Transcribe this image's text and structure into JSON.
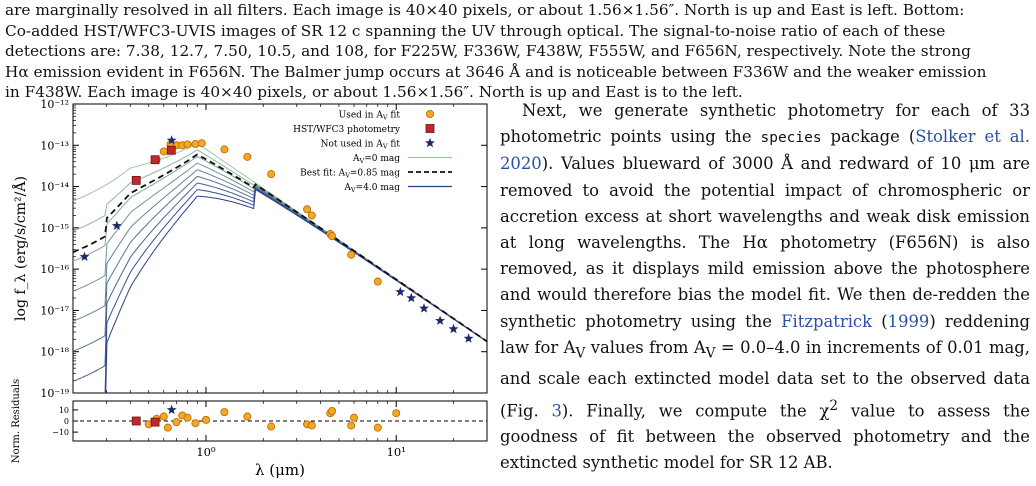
{
  "caption": {
    "line1": "are marginally resolved in all filters. Each image is 40×40 pixels, or about 1.56×1.56″. North is up and East is left. Bottom:",
    "line2": "Co-added HST/WFC3-UVIS images of SR 12 c spanning the UV through optical. The signal-to-noise ratio of each of these",
    "line3": "detections are: 7.38, 12.7, 7.50, 10.5, and 108, for F225W, F336W, F438W, F555W, and F656N, respectively. Note the strong",
    "line4": "Hα emission evident in F656N. The Balmer jump occurs at 3646 Å and is noticeable between F336W and the weaker emission",
    "line5": "in F438W. Each image is 40×40 pixels, or about 1.56×1.56″. North is up and East is to the left."
  },
  "body": {
    "p1_a": "Next, we generate synthetic photometry for each of 33 photometric points using the ",
    "p1_code": "species",
    "p1_b": " package (",
    "p1_cite1": "Stolker et al. 2020",
    "p1_c": "). Values blueward of 3000 Å and redward of 10 μm are removed to avoid the potential impact of chromospheric or accretion excess at short wavelengths and weak disk emission at long wavelengths. The Hα photometry (F656N) is also removed, as it displays mild emission above the photosphere and would therefore bias the model fit. We then de-redden the synthetic photometry using the ",
    "p1_cite2": "Fitzpatrick",
    "p1_cite2_year": "1999",
    "p1_d": " reddening law for A",
    "p1_d_sub": "V",
    "p1_e": " values from A",
    "p1_e_sub": "V",
    "p1_f": " = 0.0–4.0 in increments of 0.01 mag, and scale each extincted model data set to the observed data (Fig. ",
    "p1_fig": "3",
    "p1_g": "). Finally, we compute the χ",
    "p1_g_sup": "2",
    "p1_h": " value to assess the goodness of fit between the observed photometry and the extincted synthetic model for SR 12 AB."
  },
  "chart_data": {
    "type": "scatter",
    "xlabel": "λ (μm)",
    "ylabel": "log f_λ (erg/s/cm²/Å)",
    "ylabel_bottom": "Norm. Residuals",
    "x_scale": "log",
    "y_scale": "log",
    "xlim": [
      0.2,
      30
    ],
    "ylim": [
      1e-19,
      1e-12
    ],
    "xticks": [
      "10⁰",
      "10¹"
    ],
    "yticks": [
      "10⁻¹⁹",
      "10⁻¹⁸",
      "10⁻¹⁷",
      "10⁻¹⁶",
      "10⁻¹⁵",
      "10⁻¹⁴",
      "10⁻¹³",
      "10⁻¹²"
    ],
    "resid_ylim": [
      -18,
      18
    ],
    "resid_yticks": [
      "10",
      "0",
      "−10"
    ],
    "legend_placement": "top-right",
    "legend": [
      {
        "label": "Used in A_V fit",
        "marker": "circle",
        "color": "#f5a623"
      },
      {
        "label": "HST/WFC3 photometry",
        "marker": "square",
        "color": "#c0282d"
      },
      {
        "label": "Not used in A_V fit",
        "marker": "star",
        "color": "#1b2a6b"
      },
      {
        "label": "A_V=0 mag",
        "line": "solid",
        "color": "#9cc9a4"
      },
      {
        "label": "Best fit: A_V=0.85 mag",
        "line": "dashed",
        "color": "#111111"
      },
      {
        "label": "A_V=4.0 mag",
        "line": "solid",
        "color": "#2b3f8c"
      }
    ],
    "series": [
      {
        "name": "Used in A_V fit",
        "points": [
          [
            0.55,
            -13.35
          ],
          [
            0.6,
            -13.15
          ],
          [
            0.65,
            -12.98
          ],
          [
            0.7,
            -13.0
          ],
          [
            0.75,
            -13.0
          ],
          [
            0.8,
            -12.98
          ],
          [
            0.88,
            -12.97
          ],
          [
            0.95,
            -12.95
          ],
          [
            1.25,
            -13.1
          ],
          [
            1.65,
            -13.28
          ],
          [
            2.2,
            -13.7
          ],
          [
            3.4,
            -14.55
          ],
          [
            3.6,
            -14.7
          ],
          [
            4.5,
            -15.15
          ],
          [
            4.6,
            -15.2
          ],
          [
            5.8,
            -15.65
          ],
          [
            8.0,
            -16.3
          ]
        ]
      },
      {
        "name": "HST/WFC3 photometry",
        "points": [
          [
            0.43,
            -13.85
          ],
          [
            0.54,
            -13.35
          ],
          [
            0.657,
            -13.12
          ]
        ]
      },
      {
        "name": "Not used in A_V fit",
        "points": [
          [
            0.23,
            -15.7
          ],
          [
            0.34,
            -14.95
          ],
          [
            0.66,
            -12.88
          ],
          [
            10.5,
            -16.55
          ],
          [
            12.0,
            -16.7
          ],
          [
            14.0,
            -16.95
          ],
          [
            17.0,
            -17.25
          ],
          [
            20.0,
            -17.45
          ],
          [
            24.0,
            -17.68
          ]
        ]
      }
    ],
    "residuals": [
      [
        0.43,
        0
      ],
      [
        0.5,
        -3
      ],
      [
        0.55,
        2
      ],
      [
        0.6,
        4
      ],
      [
        0.63,
        -6
      ],
      [
        0.7,
        -1
      ],
      [
        0.75,
        5
      ],
      [
        0.8,
        3
      ],
      [
        0.88,
        -2
      ],
      [
        1.0,
        1
      ],
      [
        1.25,
        8
      ],
      [
        1.65,
        4
      ],
      [
        2.2,
        -5
      ],
      [
        3.4,
        -3
      ],
      [
        3.6,
        -4
      ],
      [
        4.5,
        7
      ],
      [
        4.6,
        9
      ],
      [
        5.8,
        -4
      ],
      [
        6.0,
        3
      ],
      [
        8.0,
        -6
      ],
      [
        10.0,
        7
      ]
    ],
    "resid_squares": [
      [
        0.43,
        0
      ],
      [
        0.54,
        -1
      ]
    ],
    "resid_stars": [
      [
        0.66,
        10
      ]
    ],
    "model_grid_av": [
      0,
      0.5,
      1.0,
      1.5,
      2.0,
      2.5,
      3.0,
      3.5,
      4.0
    ],
    "best_fit_av": 0.85
  }
}
